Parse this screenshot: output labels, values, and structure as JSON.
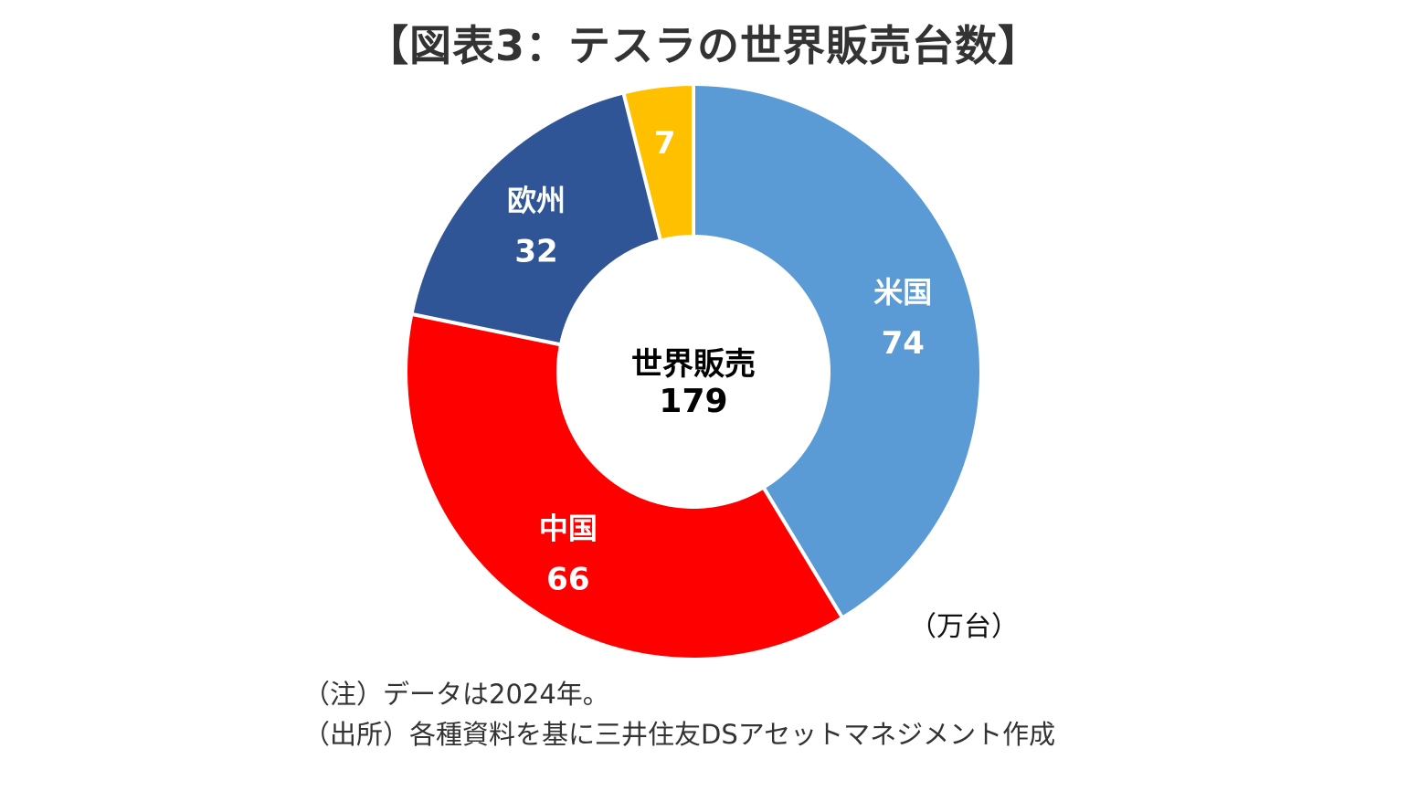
{
  "title": "【図表3：テスラの世界販売台数】",
  "unit": "（万台）",
  "notes": {
    "note": "（注）データは2024年。",
    "source": "（出所）各種資料を基に三井住友DSアセットマネジメント作成"
  },
  "chart_data": {
    "type": "pie",
    "variant": "donut",
    "title": "【図表3：テスラの世界販売台数】",
    "center_label": "世界販売",
    "center_value": "179",
    "categories": [
      "米国",
      "中国",
      "欧州",
      ""
    ],
    "values": [
      74,
      66,
      32,
      7
    ],
    "value_labels": [
      "74",
      "66",
      "32",
      "7"
    ],
    "colors": [
      "#5b9bd5",
      "#ff0000",
      "#2f5597",
      "#ffc000"
    ],
    "label_color": "#ffffff",
    "center_text_color": "#000000"
  }
}
